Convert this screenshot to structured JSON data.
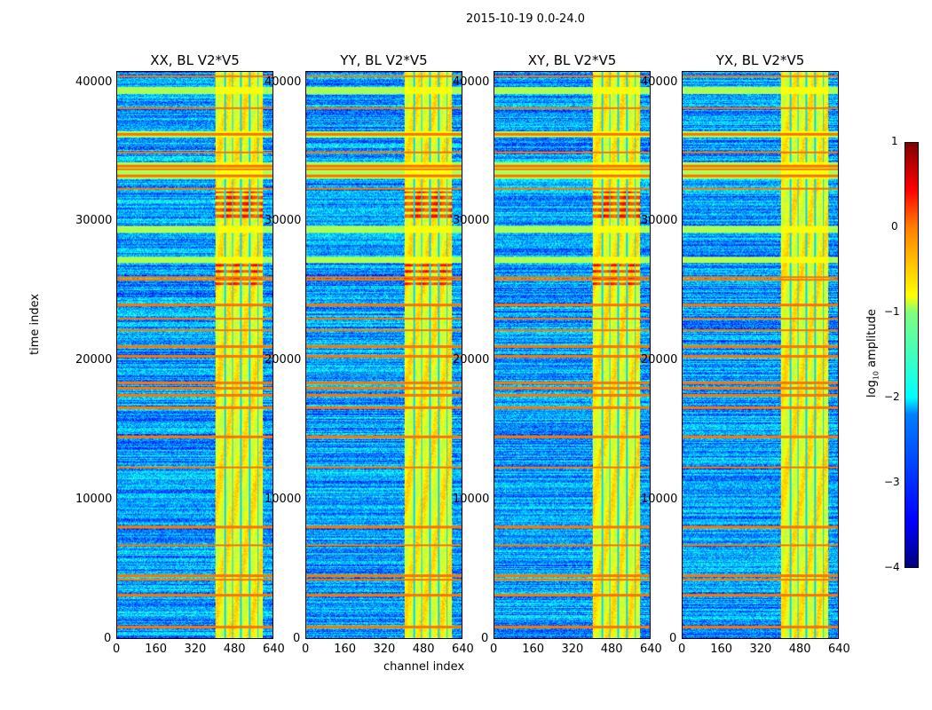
{
  "chart_data": {
    "type": "heatmap",
    "suptitle": "2015-10-19 0.0-24.0",
    "panels": [
      {
        "title": "XX, BL V2*V5"
      },
      {
        "title": "YY, BL V2*V5"
      },
      {
        "title": "XY, BL V2*V5"
      },
      {
        "title": "YX, BL V2*V5"
      }
    ],
    "xlabel": "channel index",
    "ylabel": "time index",
    "xlim": [
      0,
      640
    ],
    "ylim": [
      0,
      40800
    ],
    "xticks": [
      "0",
      "160",
      "320",
      "480",
      "640"
    ],
    "yticks": [
      "0",
      "10000",
      "20000",
      "30000",
      "40000"
    ],
    "colorbar": {
      "label": "log10 amplitude",
      "label_main": "log",
      "label_sub": "10",
      "label_tail": " amplitude",
      "range": [
        -4,
        1
      ],
      "ticks": [
        "1",
        "0",
        "−1",
        "−2",
        "−3",
        "−4"
      ],
      "colormap": "jet"
    },
    "structure": {
      "background_level": -2.6,
      "bright_channel_range": [
        405,
        600
      ],
      "bright_channel_level": -0.9,
      "dark_channels": [
        445,
        475,
        510,
        545,
        580
      ],
      "hot_rows": [
        800,
        3100,
        4200,
        4500,
        6700,
        8000,
        12300,
        14500,
        16600,
        17500,
        18000,
        18400,
        20300,
        21000,
        22200,
        23000,
        24000,
        25800,
        26000,
        32400,
        33300,
        33800,
        34000,
        35000,
        36300,
        38200,
        40500
      ],
      "green_row_bands": [
        [
          39200,
          39700
        ],
        [
          36100,
          36500
        ],
        [
          33100,
          34300
        ],
        [
          29200,
          29700
        ],
        [
          27000,
          27500
        ]
      ],
      "red_blocks": [
        [
          25200,
          27500
        ],
        [
          30200,
          32200
        ]
      ]
    }
  }
}
